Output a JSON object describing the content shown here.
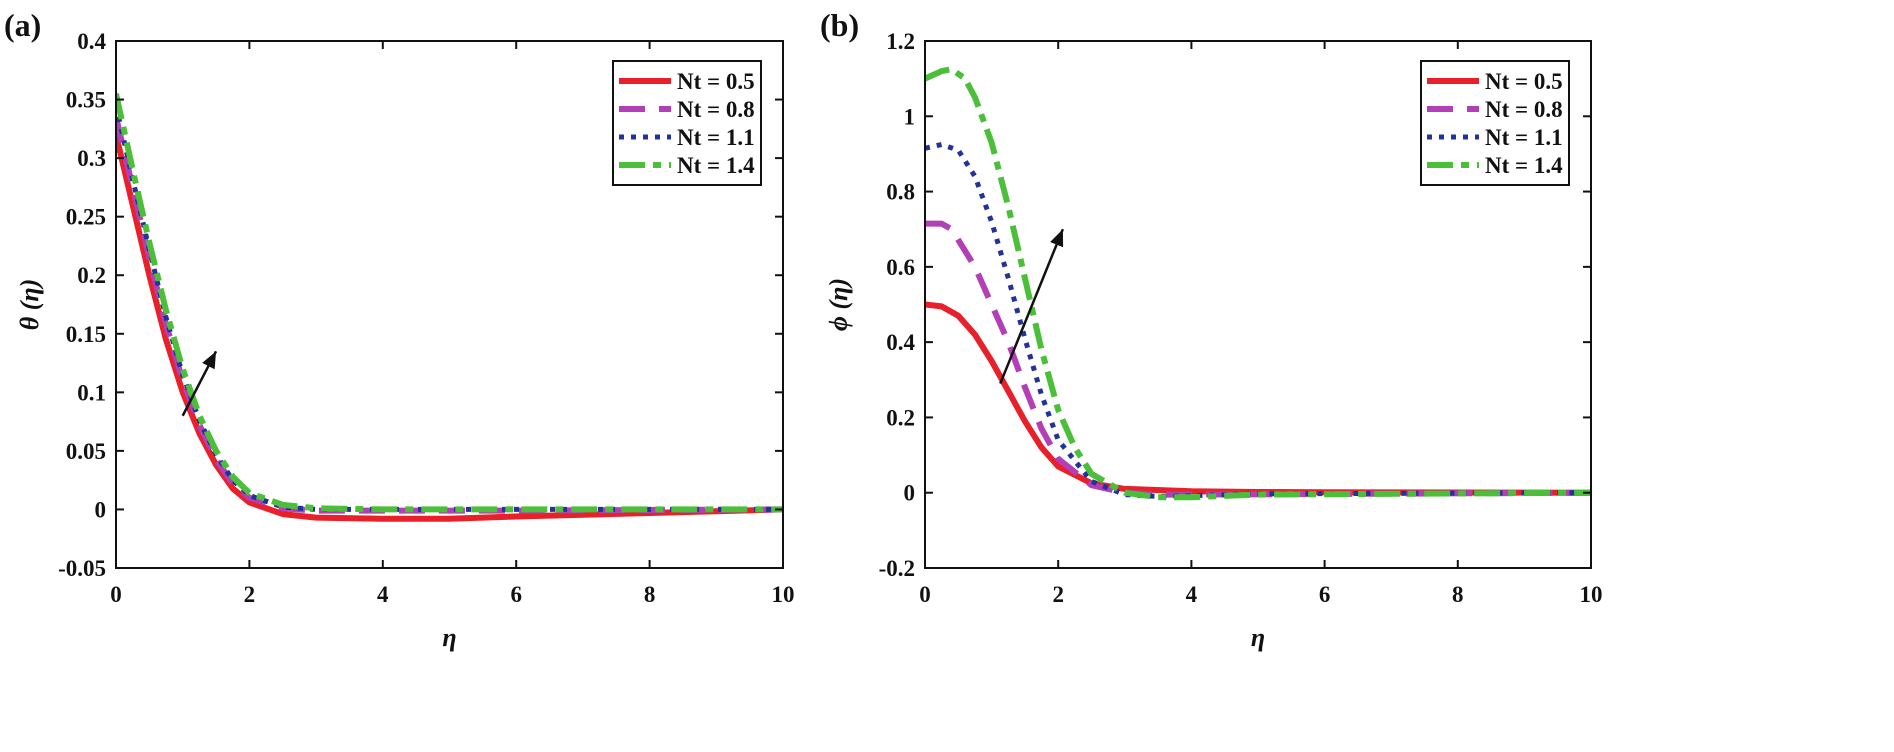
{
  "chart_data": [
    {
      "panel_label": "(a)",
      "type": "line",
      "xlabel": "η",
      "ylabel": "θ (η)",
      "xlim": [
        0,
        10
      ],
      "ylim": [
        -0.05,
        0.4
      ],
      "xticks": [
        0,
        2,
        4,
        6,
        8,
        10
      ],
      "yticks": [
        -0.05,
        0,
        0.05,
        0.1,
        0.15,
        0.2,
        0.25,
        0.3,
        0.35,
        0.4
      ],
      "ytick_labels": [
        "-0.05",
        "0",
        "0.05",
        "0.1",
        "0.15",
        "0.2",
        "0.25",
        "0.3",
        "0.35",
        "0.4"
      ],
      "grid": false,
      "legend_position": "top-right",
      "arrow": {
        "from": [
          1.0,
          0.08
        ],
        "to": [
          1.5,
          0.135
        ]
      },
      "series": [
        {
          "name": "Nt = 0.5",
          "color": "#e8202a",
          "style": "solid",
          "x": [
            0,
            0.25,
            0.5,
            0.75,
            1,
            1.25,
            1.5,
            1.75,
            2,
            2.5,
            3,
            4,
            5,
            6,
            8,
            10
          ],
          "y": [
            0.32,
            0.26,
            0.2,
            0.145,
            0.1,
            0.065,
            0.038,
            0.018,
            0.006,
            -0.004,
            -0.007,
            -0.008,
            -0.008,
            -0.006,
            -0.003,
            0
          ]
        },
        {
          "name": "Nt = 0.8",
          "color": "#b23fb5",
          "style": "dash",
          "x": [
            0,
            0.25,
            0.5,
            0.75,
            1,
            1.25,
            1.5,
            1.75,
            2,
            2.5,
            3,
            4,
            6,
            10
          ],
          "y": [
            0.335,
            0.275,
            0.215,
            0.158,
            0.11,
            0.072,
            0.043,
            0.022,
            0.01,
            0.001,
            -0.001,
            -0.001,
            -0.001,
            0
          ]
        },
        {
          "name": "Nt = 1.1",
          "color": "#23329a",
          "style": "dot",
          "x": [
            0,
            0.25,
            0.5,
            0.75,
            1,
            1.25,
            1.5,
            1.75,
            2,
            2.5,
            3,
            4,
            10
          ],
          "y": [
            0.345,
            0.282,
            0.222,
            0.164,
            0.115,
            0.076,
            0.047,
            0.025,
            0.012,
            0.002,
            0,
            0,
            0
          ]
        },
        {
          "name": "Nt = 1.4",
          "color": "#4cbf3a",
          "style": "dashdot",
          "x": [
            0,
            0.25,
            0.5,
            0.75,
            1,
            1.25,
            1.5,
            1.75,
            2,
            2.5,
            3,
            4,
            10
          ],
          "y": [
            0.355,
            0.29,
            0.228,
            0.17,
            0.12,
            0.08,
            0.05,
            0.028,
            0.014,
            0.004,
            0.001,
            0,
            0
          ]
        }
      ]
    },
    {
      "panel_label": "(b)",
      "type": "line",
      "xlabel": "η",
      "ylabel": "ϕ (η)",
      "xlim": [
        0,
        10
      ],
      "ylim": [
        -0.2,
        1.2
      ],
      "xticks": [
        0,
        2,
        4,
        6,
        8,
        10
      ],
      "yticks": [
        -0.2,
        0,
        0.2,
        0.4,
        0.6,
        0.8,
        1,
        1.2
      ],
      "ytick_labels": [
        "-0.2",
        "0",
        "0.2",
        "0.4",
        "0.6",
        "0.8",
        "1",
        "1.2"
      ],
      "grid": false,
      "legend_position": "top-right",
      "arrow": {
        "from": [
          1.13,
          0.29
        ],
        "to": [
          2.07,
          0.7
        ]
      },
      "series": [
        {
          "name": "Nt = 0.5",
          "color": "#e8202a",
          "style": "solid",
          "x": [
            0,
            0.25,
            0.5,
            0.75,
            1,
            1.25,
            1.5,
            1.75,
            2,
            2.5,
            3,
            4,
            5,
            6,
            10
          ],
          "y": [
            0.5,
            0.495,
            0.47,
            0.42,
            0.35,
            0.27,
            0.19,
            0.12,
            0.07,
            0.025,
            0.01,
            0.004,
            0.002,
            0.001,
            0
          ]
        },
        {
          "name": "Nt = 0.8",
          "color": "#b23fb5",
          "style": "dash",
          "x": [
            0,
            0.25,
            0.4,
            0.75,
            1,
            1.25,
            1.5,
            1.75,
            2,
            2.5,
            3,
            3.5,
            4,
            10
          ],
          "y": [
            0.715,
            0.715,
            0.7,
            0.6,
            0.5,
            0.4,
            0.28,
            0.17,
            0.09,
            0.02,
            0,
            -0.005,
            -0.005,
            0
          ]
        },
        {
          "name": "Nt = 1.1",
          "color": "#23329a",
          "style": "dot",
          "x": [
            0,
            0.25,
            0.5,
            0.75,
            1,
            1.25,
            1.5,
            1.75,
            2,
            2.5,
            3,
            3.5,
            4,
            5,
            10
          ],
          "y": [
            0.915,
            0.925,
            0.91,
            0.84,
            0.72,
            0.57,
            0.41,
            0.26,
            0.14,
            0.03,
            -0.005,
            -0.01,
            -0.008,
            -0.003,
            0
          ]
        },
        {
          "name": "Nt = 1.4",
          "color": "#4cbf3a",
          "style": "dashdot",
          "x": [
            0,
            0.25,
            0.4,
            0.6,
            0.75,
            1,
            1.25,
            1.5,
            1.75,
            2,
            2.25,
            2.5,
            3,
            3.5,
            4,
            5,
            10
          ],
          "y": [
            1.1,
            1.12,
            1.125,
            1.1,
            1.05,
            0.93,
            0.76,
            0.57,
            0.38,
            0.22,
            0.12,
            0.05,
            0,
            -0.012,
            -0.012,
            -0.005,
            0
          ]
        }
      ]
    }
  ]
}
